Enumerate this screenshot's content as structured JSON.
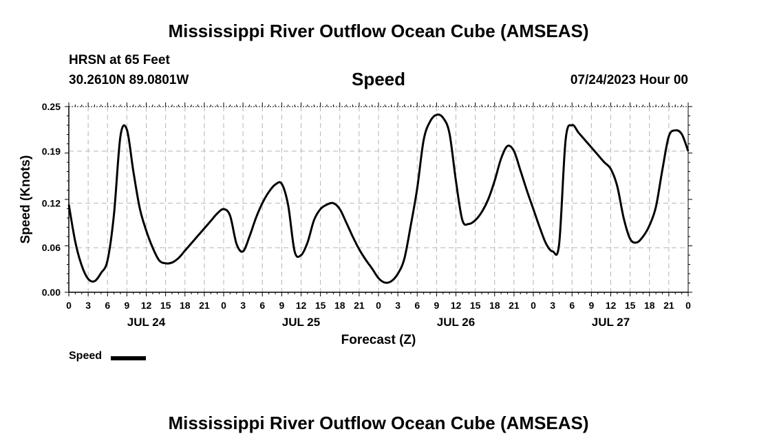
{
  "header": {
    "title": "Mississippi River Outflow Ocean Cube (AMSEAS)",
    "station": "HRSN at 65 Feet",
    "coordinates": "30.2610N  89.0801W",
    "variable": "Speed",
    "datetime": "07/24/2023 Hour 00"
  },
  "footer": {
    "title": "Mississippi River Outflow Ocean Cube (AMSEAS)"
  },
  "legend": {
    "label": "Speed",
    "color": "#000000"
  },
  "chart_data": {
    "type": "line",
    "title": "Speed",
    "xlabel": "Forecast (Z)",
    "ylabel": "Speed (Knots)",
    "xlim": [
      0,
      96
    ],
    "ylim": [
      0,
      0.25
    ],
    "yticks": [
      0.0,
      0.06,
      0.12,
      0.19,
      0.25
    ],
    "ytick_labels": [
      "0.00",
      "0.06",
      "0.12",
      "0.19",
      "0.25"
    ],
    "xticks": [
      0,
      3,
      6,
      9,
      12,
      15,
      18,
      21,
      24,
      27,
      30,
      33,
      36,
      39,
      42,
      45,
      48,
      51,
      54,
      57,
      60,
      63,
      66,
      69,
      72,
      75,
      78,
      81,
      84,
      87,
      90,
      93,
      96
    ],
    "xtick_labels": [
      "0",
      "3",
      "6",
      "9",
      "12",
      "15",
      "18",
      "21",
      "0",
      "3",
      "6",
      "9",
      "12",
      "15",
      "18",
      "21",
      "0",
      "3",
      "6",
      "9",
      "12",
      "15",
      "18",
      "21",
      "0",
      "3",
      "6",
      "9",
      "12",
      "15",
      "18",
      "21",
      "0"
    ],
    "day_labels": [
      {
        "label": "JUL 24",
        "x": 12
      },
      {
        "label": "JUL 25",
        "x": 36
      },
      {
        "label": "JUL 26",
        "x": 60
      },
      {
        "label": "JUL 27",
        "x": 84
      }
    ],
    "grid": true,
    "series": [
      {
        "name": "Speed",
        "color": "#000000",
        "x": [
          0,
          1,
          2,
          3,
          4,
          5,
          6,
          7,
          8,
          9,
          10,
          11,
          12,
          13,
          14,
          15,
          16,
          17,
          18,
          19,
          20,
          21,
          22,
          23,
          24,
          25,
          26,
          27,
          28,
          29,
          30,
          31,
          32,
          33,
          34,
          35,
          36,
          37,
          38,
          39,
          40,
          41,
          42,
          43,
          44,
          45,
          46,
          47,
          48,
          49,
          50,
          51,
          52,
          53,
          54,
          55,
          56,
          57,
          58,
          59,
          60,
          61,
          62,
          63,
          64,
          65,
          66,
          67,
          68,
          69,
          70,
          71,
          72,
          73,
          74,
          75,
          76,
          77,
          78,
          79,
          80,
          81,
          82,
          83,
          84,
          85,
          86,
          87,
          88,
          89,
          90,
          91,
          92,
          93,
          94,
          95,
          96
        ],
        "values": [
          0.118,
          0.068,
          0.036,
          0.018,
          0.015,
          0.026,
          0.043,
          0.105,
          0.21,
          0.219,
          0.163,
          0.113,
          0.083,
          0.06,
          0.043,
          0.039,
          0.04,
          0.046,
          0.056,
          0.066,
          0.076,
          0.086,
          0.096,
          0.106,
          0.112,
          0.103,
          0.065,
          0.055,
          0.075,
          0.1,
          0.12,
          0.135,
          0.145,
          0.146,
          0.117,
          0.055,
          0.05,
          0.067,
          0.097,
          0.112,
          0.118,
          0.12,
          0.112,
          0.094,
          0.075,
          0.058,
          0.044,
          0.032,
          0.019,
          0.013,
          0.015,
          0.025,
          0.045,
          0.09,
          0.14,
          0.205,
          0.23,
          0.239,
          0.235,
          0.214,
          0.15,
          0.097,
          0.092,
          0.097,
          0.108,
          0.125,
          0.15,
          0.18,
          0.197,
          0.19,
          0.164,
          0.137,
          0.112,
          0.087,
          0.065,
          0.055,
          0.065,
          0.205,
          0.225,
          0.215,
          0.205,
          0.195,
          0.185,
          0.175,
          0.166,
          0.143,
          0.1,
          0.072,
          0.067,
          0.075,
          0.09,
          0.115,
          0.165,
          0.21,
          0.218,
          0.213,
          0.19
        ]
      }
    ]
  }
}
